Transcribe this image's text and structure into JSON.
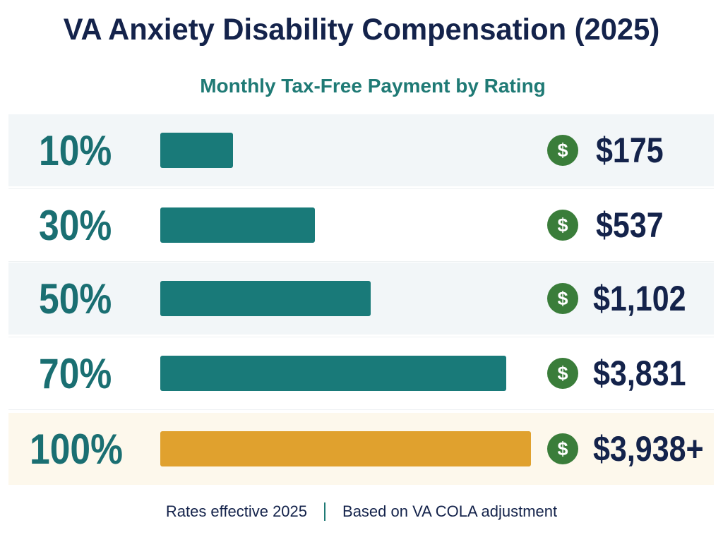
{
  "title": "VA Anxiety Disability Compensation (2025)",
  "subtitle": "Monthly Tax-Free Payment by Rating",
  "footer": {
    "left": "Rates effective 2025",
    "right": "Based on VA COLA adjustment"
  },
  "colors": {
    "bar_standard": "#197a79",
    "bar_highlight": "#e0a12e",
    "coin": "#3a7d3a",
    "row_tint_a": "#f2f6f8",
    "row_tint_b": "#ffffff",
    "row_tint_highlight": "#fdf8ec"
  },
  "icon": "dollar-coin-icon",
  "chart_data": {
    "type": "bar",
    "orientation": "horizontal",
    "title": "VA Anxiety Disability Compensation (2025)",
    "subtitle": "Monthly Tax-Free Payment by Rating",
    "xlabel": "",
    "ylabel": "",
    "grid": false,
    "legend": "none",
    "categories": [
      "10%",
      "30%",
      "50%",
      "70%",
      "100%"
    ],
    "values": [
      175,
      537,
      1102,
      3831,
      3938
    ],
    "value_labels": [
      "$175",
      "$537",
      "$1,102",
      "$3,831",
      "$3,938+"
    ],
    "highlight_index": 4
  }
}
